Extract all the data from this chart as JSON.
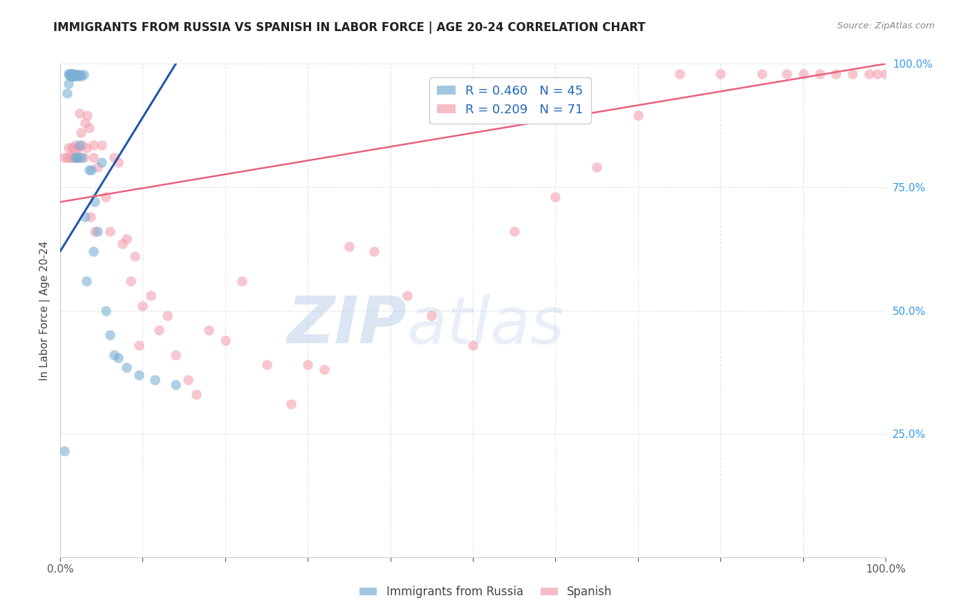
{
  "title": "IMMIGRANTS FROM RUSSIA VS SPANISH IN LABOR FORCE | AGE 20-24 CORRELATION CHART",
  "source": "Source: ZipAtlas.com",
  "ylabel": "In Labor Force | Age 20-24",
  "xlim": [
    0.0,
    1.0
  ],
  "ylim": [
    0.0,
    1.0
  ],
  "blue_R": 0.46,
  "blue_N": 45,
  "pink_R": 0.209,
  "pink_N": 71,
  "blue_color": "#7BAFD4",
  "pink_color": "#F4A0B0",
  "blue_line_color": "#2255AA",
  "pink_line_color": "#E8607A",
  "background_color": "#FFFFFF",
  "grid_color": "#DDDDDD",
  "blue_points_x": [
    0.005,
    0.008,
    0.01,
    0.01,
    0.011,
    0.012,
    0.013,
    0.013,
    0.014,
    0.014,
    0.015,
    0.015,
    0.016,
    0.016,
    0.017,
    0.018,
    0.018,
    0.019,
    0.019,
    0.02,
    0.02,
    0.021,
    0.022,
    0.022,
    0.023,
    0.024,
    0.025,
    0.026,
    0.028,
    0.03,
    0.032,
    0.035,
    0.038,
    0.04,
    0.042,
    0.045,
    0.05,
    0.055,
    0.06,
    0.065,
    0.07,
    0.08,
    0.095,
    0.115,
    0.14
  ],
  "blue_points_y": [
    0.215,
    0.94,
    0.96,
    0.98,
    0.98,
    0.975,
    0.98,
    0.975,
    0.975,
    0.98,
    0.975,
    0.98,
    0.975,
    0.978,
    0.975,
    0.978,
    0.81,
    0.978,
    0.975,
    0.978,
    0.81,
    0.978,
    0.975,
    0.81,
    0.835,
    0.978,
    0.975,
    0.81,
    0.978,
    0.69,
    0.56,
    0.785,
    0.785,
    0.62,
    0.72,
    0.66,
    0.8,
    0.5,
    0.45,
    0.41,
    0.405,
    0.385,
    0.37,
    0.36,
    0.35
  ],
  "pink_points_x": [
    0.005,
    0.008,
    0.01,
    0.012,
    0.013,
    0.014,
    0.015,
    0.016,
    0.017,
    0.018,
    0.019,
    0.02,
    0.022,
    0.023,
    0.024,
    0.025,
    0.027,
    0.028,
    0.03,
    0.032,
    0.033,
    0.035,
    0.037,
    0.04,
    0.04,
    0.042,
    0.045,
    0.05,
    0.055,
    0.06,
    0.065,
    0.07,
    0.075,
    0.08,
    0.085,
    0.09,
    0.095,
    0.1,
    0.11,
    0.12,
    0.13,
    0.14,
    0.155,
    0.165,
    0.18,
    0.2,
    0.22,
    0.25,
    0.28,
    0.3,
    0.32,
    0.35,
    0.38,
    0.42,
    0.45,
    0.5,
    0.55,
    0.6,
    0.65,
    0.7,
    0.75,
    0.8,
    0.85,
    0.88,
    0.9,
    0.92,
    0.94,
    0.96,
    0.98,
    0.99,
    1.0
  ],
  "pink_points_y": [
    0.81,
    0.81,
    0.83,
    0.81,
    0.81,
    0.83,
    0.81,
    0.83,
    0.81,
    0.835,
    0.81,
    0.83,
    0.83,
    0.9,
    0.81,
    0.86,
    0.835,
    0.81,
    0.88,
    0.83,
    0.895,
    0.87,
    0.69,
    0.81,
    0.835,
    0.66,
    0.79,
    0.835,
    0.73,
    0.66,
    0.81,
    0.8,
    0.635,
    0.645,
    0.56,
    0.61,
    0.43,
    0.51,
    0.53,
    0.46,
    0.49,
    0.41,
    0.36,
    0.33,
    0.46,
    0.44,
    0.56,
    0.39,
    0.31,
    0.39,
    0.38,
    0.63,
    0.62,
    0.53,
    0.49,
    0.43,
    0.66,
    0.73,
    0.79,
    0.895,
    0.98,
    0.98,
    0.98,
    0.98,
    0.98,
    0.98,
    0.98,
    0.98,
    0.98,
    0.98,
    0.98
  ],
  "blue_trend_x": [
    0.0,
    0.14
  ],
  "blue_trend_y": [
    0.62,
    1.0
  ],
  "pink_trend_x": [
    0.0,
    1.0
  ],
  "pink_trend_y": [
    0.72,
    1.0
  ]
}
